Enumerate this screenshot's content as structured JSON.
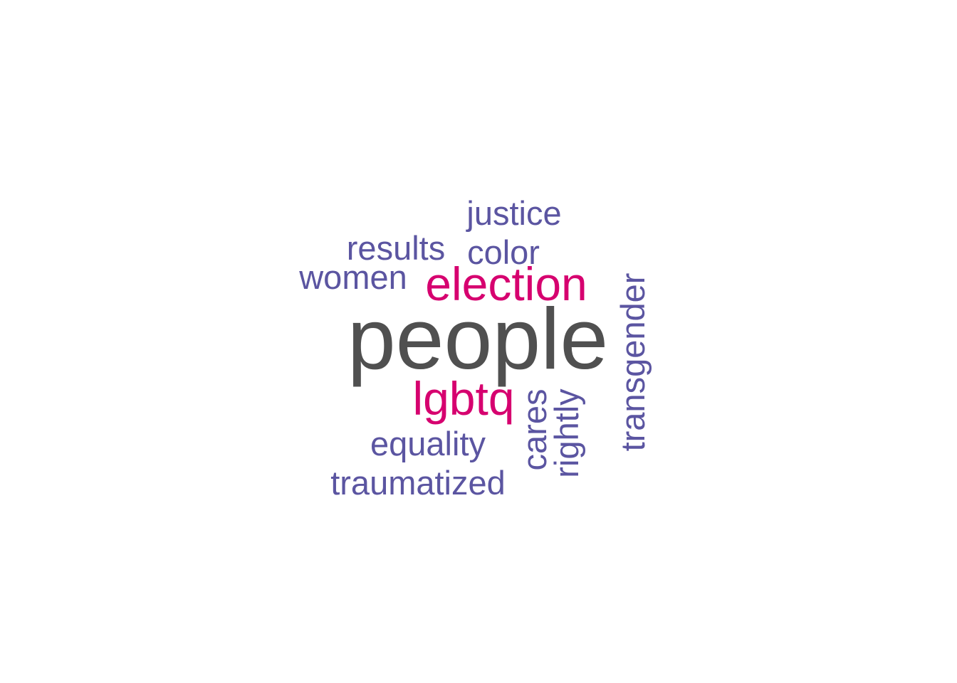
{
  "colors": {
    "primary": "#505050",
    "accent": "#d6006f",
    "secondary": "#5b55a1"
  },
  "words": [
    {
      "text": "people",
      "color": "primary"
    },
    {
      "text": "election",
      "color": "accent"
    },
    {
      "text": "lgbtq",
      "color": "accent"
    },
    {
      "text": "justice",
      "color": "secondary"
    },
    {
      "text": "results",
      "color": "secondary"
    },
    {
      "text": "color",
      "color": "secondary"
    },
    {
      "text": "women",
      "color": "secondary"
    },
    {
      "text": "transgender",
      "color": "secondary"
    },
    {
      "text": "equality",
      "color": "secondary"
    },
    {
      "text": "traumatized",
      "color": "secondary"
    },
    {
      "text": "cares",
      "color": "secondary"
    },
    {
      "text": "rightly",
      "color": "secondary"
    }
  ]
}
